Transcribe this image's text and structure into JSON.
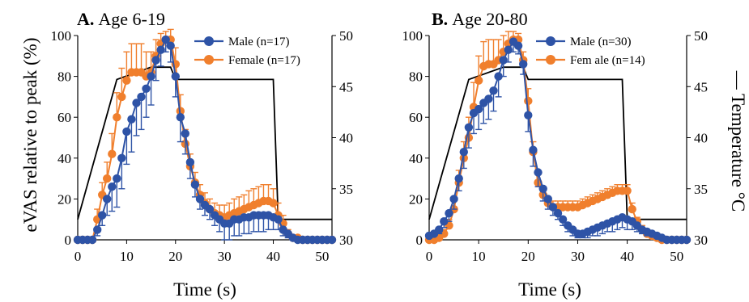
{
  "figure": {
    "ylabel": "eVAS relative to peak (%)",
    "y2label": "— Temperature °C"
  },
  "colors": {
    "male": "#2e53a6",
    "female": "#f07f2d",
    "temperature": "#000000"
  },
  "chart_data": [
    {
      "type": "line",
      "panel_letter": "A.",
      "panel_title": "Age 6-19",
      "xlabel": "Time (s)",
      "ylabel": "eVAS relative to peak (%)",
      "y2label": "— Temperature °C",
      "xlim": [
        0,
        52
      ],
      "ylim": [
        0,
        100
      ],
      "y2lim": [
        30,
        50
      ],
      "xticks": [
        "0",
        "10",
        "20",
        "30",
        "40",
        "50"
      ],
      "yticks": [
        "0",
        "20",
        "40",
        "60",
        "80",
        "100"
      ],
      "y2ticks": [
        "30",
        "35",
        "40",
        "45",
        "50"
      ],
      "legend_position": "top-right",
      "series": [
        {
          "name": "Male (n=17)",
          "color": "#2e53a6",
          "axis": "y",
          "error_bars": "below",
          "x": [
            0,
            1,
            2,
            3,
            4,
            5,
            6,
            7,
            8,
            9,
            10,
            11,
            12,
            13,
            14,
            15,
            16,
            17,
            18,
            19,
            20,
            21,
            22,
            23,
            24,
            25,
            26,
            27,
            28,
            29,
            30,
            31,
            32,
            33,
            34,
            35,
            36,
            37,
            38,
            39,
            40,
            41,
            42,
            43,
            44,
            45,
            46,
            47,
            48,
            49,
            50,
            51,
            52
          ],
          "y": [
            0,
            0,
            0,
            0,
            5,
            12,
            20,
            26,
            30,
            40,
            53,
            59,
            67,
            70,
            74,
            80,
            88,
            93,
            98,
            95,
            80,
            60,
            52,
            38,
            27,
            20,
            17,
            15,
            12,
            10,
            8,
            8,
            10,
            10,
            11,
            11,
            12,
            12,
            12,
            12,
            11,
            10,
            5,
            3,
            1,
            0,
            0,
            0,
            0,
            0,
            0,
            0,
            0
          ],
          "err": [
            0,
            0,
            0,
            0,
            3,
            5,
            8,
            12,
            14,
            15,
            16,
            16,
            16,
            16,
            14,
            14,
            10,
            8,
            6,
            8,
            10,
            12,
            10,
            8,
            6,
            5,
            5,
            5,
            5,
            6,
            8,
            8,
            8,
            8,
            8,
            8,
            8,
            8,
            8,
            7,
            6,
            5,
            3,
            2,
            1,
            0,
            0,
            0,
            0,
            0,
            0,
            0,
            0
          ]
        },
        {
          "name": "Female (n=17)",
          "color": "#f07f2d",
          "axis": "y",
          "error_bars": "above",
          "x": [
            0,
            1,
            2,
            3,
            4,
            5,
            6,
            7,
            8,
            9,
            10,
            11,
            12,
            13,
            14,
            15,
            16,
            17,
            18,
            19,
            20,
            21,
            22,
            23,
            24,
            25,
            26,
            27,
            28,
            29,
            30,
            31,
            32,
            33,
            34,
            35,
            36,
            37,
            38,
            39,
            40,
            41,
            42,
            43,
            44,
            45,
            46,
            47,
            48,
            49,
            50,
            51,
            52
          ],
          "y": [
            0,
            0,
            0,
            0,
            10,
            22,
            30,
            42,
            60,
            70,
            78,
            82,
            82,
            82,
            80,
            82,
            90,
            96,
            98,
            98,
            86,
            63,
            47,
            36,
            28,
            22,
            18,
            15,
            13,
            12,
            11,
            12,
            13,
            14,
            15,
            16,
            17,
            18,
            19,
            19,
            18,
            12,
            8,
            3,
            1,
            1,
            0,
            0,
            0,
            0,
            0,
            0,
            0
          ],
          "err": [
            0,
            0,
            0,
            0,
            5,
            6,
            8,
            10,
            12,
            14,
            14,
            14,
            14,
            14,
            12,
            10,
            8,
            5,
            4,
            5,
            8,
            8,
            7,
            6,
            5,
            5,
            5,
            5,
            5,
            5,
            6,
            6,
            7,
            7,
            7,
            8,
            8,
            8,
            8,
            8,
            7,
            6,
            4,
            2,
            1,
            1,
            0,
            0,
            0,
            0,
            0,
            0,
            0
          ]
        },
        {
          "name": "Temperature",
          "color": "#000000",
          "axis": "y2",
          "x": [
            0,
            8,
            15,
            19,
            20,
            40,
            41,
            52
          ],
          "y": [
            32,
            45.7,
            46.9,
            46.9,
            45.7,
            45.7,
            32,
            32
          ]
        }
      ]
    },
    {
      "type": "line",
      "panel_letter": "B.",
      "panel_title": "Age 20-80",
      "xlabel": "Time (s)",
      "ylabel": "",
      "y2label": "— Temperature °C",
      "xlim": [
        0,
        52
      ],
      "ylim": [
        0,
        100
      ],
      "y2lim": [
        30,
        50
      ],
      "xticks": [
        "0",
        "10",
        "20",
        "30",
        "40",
        "50"
      ],
      "yticks": [
        "0",
        "20",
        "40",
        "60",
        "80",
        "100"
      ],
      "y2ticks": [
        "30",
        "35",
        "40",
        "45",
        "50"
      ],
      "legend_position": "top-right",
      "series": [
        {
          "name": "Male (n=30)",
          "color": "#2e53a6",
          "axis": "y",
          "error_bars": "below",
          "x": [
            0,
            1,
            2,
            3,
            4,
            5,
            6,
            7,
            8,
            9,
            10,
            11,
            12,
            13,
            14,
            15,
            16,
            17,
            18,
            19,
            20,
            21,
            22,
            23,
            24,
            25,
            26,
            27,
            28,
            29,
            30,
            31,
            32,
            33,
            34,
            35,
            36,
            37,
            38,
            39,
            40,
            41,
            42,
            43,
            44,
            45,
            46,
            47,
            48,
            49,
            50,
            51,
            52
          ],
          "y": [
            2,
            3,
            5,
            9,
            13,
            20,
            30,
            43,
            55,
            62,
            64,
            67,
            69,
            73,
            80,
            88,
            93,
            97,
            95,
            86,
            61,
            44,
            33,
            25,
            20,
            16,
            13,
            10,
            7,
            5,
            3,
            3,
            4,
            5,
            6,
            7,
            8,
            9,
            10,
            11,
            10,
            9,
            7,
            5,
            4,
            3,
            2,
            1,
            0,
            0,
            0,
            0,
            0
          ],
          "err": [
            0,
            1,
            2,
            3,
            4,
            5,
            6,
            8,
            10,
            10,
            10,
            10,
            10,
            10,
            10,
            8,
            6,
            5,
            4,
            5,
            8,
            8,
            7,
            6,
            5,
            4,
            3,
            3,
            3,
            3,
            2,
            2,
            3,
            3,
            4,
            4,
            4,
            5,
            5,
            5,
            5,
            4,
            3,
            2,
            2,
            1,
            1,
            0,
            0,
            0,
            0,
            0,
            0
          ]
        },
        {
          "name": "Fem ale (n=14)",
          "color": "#f07f2d",
          "axis": "y",
          "error_bars": "above",
          "x": [
            0,
            1,
            2,
            3,
            4,
            5,
            6,
            7,
            8,
            9,
            10,
            11,
            12,
            13,
            14,
            15,
            16,
            17,
            18,
            19,
            20,
            21,
            22,
            23,
            24,
            25,
            26,
            27,
            28,
            29,
            30,
            31,
            32,
            33,
            34,
            35,
            36,
            37,
            38,
            39,
            40,
            41,
            42,
            43,
            44,
            45,
            46,
            47,
            48,
            49,
            50,
            51,
            52
          ],
          "y": [
            0,
            0,
            1,
            3,
            7,
            15,
            28,
            40,
            50,
            65,
            78,
            85,
            86,
            86,
            88,
            92,
            96,
            98,
            98,
            88,
            68,
            43,
            28,
            22,
            18,
            16,
            16,
            16,
            16,
            16,
            16,
            17,
            18,
            19,
            20,
            21,
            22,
            23,
            24,
            24,
            24,
            15,
            9,
            5,
            3,
            2,
            1,
            0,
            0,
            0,
            0,
            0,
            0
          ],
          "err": [
            0,
            0,
            1,
            2,
            3,
            5,
            6,
            8,
            10,
            12,
            12,
            12,
            12,
            12,
            10,
            8,
            6,
            4,
            3,
            4,
            6,
            5,
            4,
            4,
            3,
            3,
            3,
            3,
            3,
            3,
            3,
            3,
            3,
            3,
            3,
            3,
            3,
            3,
            3,
            3,
            3,
            3,
            2,
            2,
            1,
            1,
            0,
            0,
            0,
            0,
            0,
            0,
            0
          ]
        },
        {
          "name": "Temperature",
          "color": "#000000",
          "axis": "y2",
          "x": [
            0,
            8,
            15,
            19,
            20,
            39,
            40,
            52
          ],
          "y": [
            32,
            45.7,
            46.9,
            46.9,
            45.7,
            45.7,
            32,
            32
          ]
        }
      ]
    }
  ]
}
